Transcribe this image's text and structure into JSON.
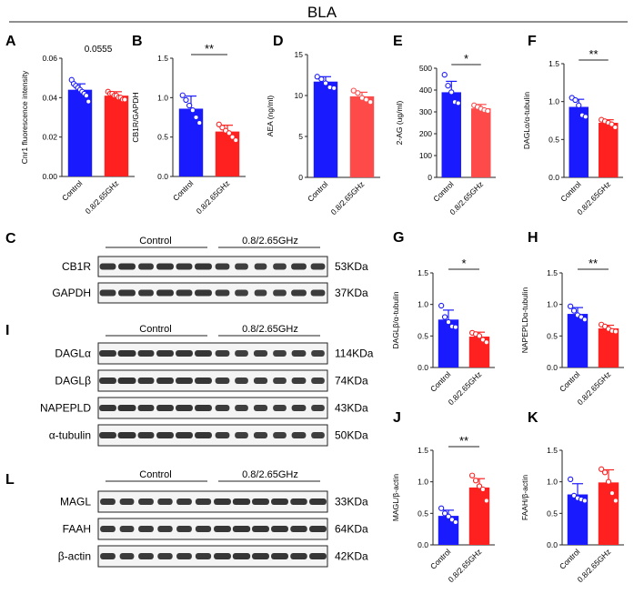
{
  "header": {
    "title": "BLA"
  },
  "colors": {
    "control": "#1a1aff",
    "treated": "#ff2020",
    "treated_light": "#ff4a4a"
  },
  "chart_data": [
    {
      "id": "A",
      "type": "bar",
      "categories": [
        "Control",
        "0.8/2.65GHz"
      ],
      "values": [
        0.044,
        0.041
      ],
      "errors": [
        0.003,
        0.002
      ],
      "points": [
        [
          0.049,
          0.047,
          0.046,
          0.045,
          0.044,
          0.043,
          0.042,
          0.041,
          0.038
        ],
        [
          0.043,
          0.042,
          0.042,
          0.041,
          0.041,
          0.04,
          0.04,
          0.039,
          0.039
        ]
      ],
      "ylabel": "Cnr1 fluorescence intensity",
      "ylim": [
        0,
        0.06
      ],
      "yticks": [
        "0.00",
        "0.02",
        "0.04",
        "0.06"
      ],
      "annotation": "0.0555"
    },
    {
      "id": "B",
      "type": "bar",
      "categories": [
        "Control",
        "0.8/2.65GHz"
      ],
      "values": [
        0.86,
        0.57
      ],
      "errors": [
        0.16,
        0.08
      ],
      "points": [
        [
          1.03,
          0.97,
          0.9,
          0.84,
          0.75,
          0.68
        ],
        [
          0.66,
          0.62,
          0.58,
          0.55,
          0.5,
          0.46
        ]
      ],
      "ylabel": "CB1R/GAPDH",
      "ylim": [
        0,
        1.5
      ],
      "yticks": [
        "0.0",
        "0.5",
        "1.0",
        "1.5"
      ],
      "annotation": "**"
    },
    {
      "id": "D",
      "type": "bar",
      "categories": [
        "Control",
        "0.8/2.65GHz"
      ],
      "values": [
        11.7,
        9.9
      ],
      "errors": [
        0.6,
        0.5
      ],
      "points": [
        [
          12.3,
          12.0,
          11.5,
          11.0,
          10.9
        ],
        [
          10.6,
          10.3,
          9.7,
          9.5,
          9.2
        ]
      ],
      "ylabel": "AEA (ng/ml)",
      "ylim": [
        0,
        15
      ],
      "yticks": [
        "0",
        "5",
        "10",
        "15"
      ],
      "annotation": ""
    },
    {
      "id": "E",
      "type": "bar",
      "categories": [
        "Control",
        "0.8/2.65GHz"
      ],
      "values": [
        390,
        316
      ],
      "errors": [
        50,
        18
      ],
      "points": [
        [
          470,
          420,
          390,
          345,
          340
        ],
        [
          330,
          322,
          314,
          308,
          304
        ]
      ],
      "ylabel": "2-AG (ug/ml)",
      "ylim": [
        0,
        500
      ],
      "yticks": [
        "0",
        "100",
        "200",
        "300",
        "400",
        "500"
      ],
      "annotation": "*"
    },
    {
      "id": "F",
      "type": "bar",
      "categories": [
        "Control",
        "0.8/2.65GHz"
      ],
      "values": [
        0.93,
        0.72
      ],
      "errors": [
        0.1,
        0.04
      ],
      "points": [
        [
          1.05,
          1.02,
          0.95,
          0.82,
          0.8
        ],
        [
          0.76,
          0.74,
          0.72,
          0.7,
          0.66
        ]
      ],
      "ylabel": "DAGLα/α-tubulin",
      "ylim": [
        0,
        1.5
      ],
      "yticks": [
        "0.0",
        "0.5",
        "1.0",
        "1.5"
      ],
      "annotation": "**"
    },
    {
      "id": "G",
      "type": "bar",
      "categories": [
        "Control",
        "0.8/2.65GHz"
      ],
      "values": [
        0.76,
        0.49
      ],
      "errors": [
        0.15,
        0.07
      ],
      "points": [
        [
          0.98,
          0.8,
          0.72,
          0.65,
          0.64
        ],
        [
          0.55,
          0.53,
          0.5,
          0.44,
          0.4
        ]
      ],
      "ylabel": "DAGLβ/α-tubulin",
      "ylim": [
        0,
        1.5
      ],
      "yticks": [
        "0.0",
        "0.5",
        "1.0",
        "1.5"
      ],
      "annotation": "*"
    },
    {
      "id": "H",
      "type": "bar",
      "categories": [
        "Control",
        "0.8/2.65GHz"
      ],
      "values": [
        0.85,
        0.62
      ],
      "errors": [
        0.1,
        0.05
      ],
      "points": [
        [
          0.97,
          0.9,
          0.83,
          0.8,
          0.76
        ],
        [
          0.68,
          0.65,
          0.61,
          0.58,
          0.57
        ]
      ],
      "ylabel": "NAPEPLDα-tubulin",
      "ylim": [
        0,
        1.5
      ],
      "yticks": [
        "0.0",
        "0.5",
        "1.0",
        "1.5"
      ],
      "annotation": "**"
    },
    {
      "id": "J",
      "type": "bar",
      "categories": [
        "Control",
        "0.8/2.65GHz"
      ],
      "values": [
        0.46,
        0.91
      ],
      "errors": [
        0.09,
        0.14
      ],
      "points": [
        [
          0.58,
          0.5,
          0.45,
          0.4,
          0.36
        ],
        [
          1.1,
          1.02,
          0.93,
          0.88,
          0.7
        ]
      ],
      "ylabel": "MAGL/β-actin",
      "ylim": [
        0,
        1.5
      ],
      "yticks": [
        "0.0",
        "0.5",
        "1.0",
        "1.5"
      ],
      "annotation": "**"
    },
    {
      "id": "K",
      "type": "bar",
      "categories": [
        "Control",
        "0.8/2.65GHz"
      ],
      "values": [
        0.8,
        0.99
      ],
      "errors": [
        0.17,
        0.2
      ],
      "points": [
        [
          1.04,
          0.78,
          0.74,
          0.72,
          0.7
        ],
        [
          1.2,
          1.15,
          1.0,
          0.82,
          0.7
        ]
      ],
      "ylabel": "FAAH/β-actin",
      "ylim": [
        0,
        1.5
      ],
      "yticks": [
        "0.0",
        "0.5",
        "1.0",
        "1.5"
      ],
      "annotation": ""
    }
  ],
  "blots": [
    {
      "id": "C",
      "control_label": "Control",
      "treated_label": "0.8/2.65GHz",
      "rows": [
        {
          "protein": "CB1R",
          "kda": "53KDa"
        },
        {
          "protein": "GAPDH",
          "kda": "37KDa"
        }
      ]
    },
    {
      "id": "I",
      "control_label": "Control",
      "treated_label": "0.8/2.65GHz",
      "rows": [
        {
          "protein": "DAGLα",
          "kda": "114KDa"
        },
        {
          "protein": "DAGLβ",
          "kda": "74KDa"
        },
        {
          "protein": "NAPEPLD",
          "kda": "43KDa"
        },
        {
          "protein": "α-tubulin",
          "kda": "50KDa"
        }
      ]
    },
    {
      "id": "L",
      "control_label": "Control",
      "treated_label": "0.8/2.65GHz",
      "rows": [
        {
          "protein": "MAGL",
          "kda": "33KDa"
        },
        {
          "protein": "FAAH",
          "kda": "64KDa"
        },
        {
          "protein": "β-actin",
          "kda": "42KDa"
        }
      ]
    }
  ]
}
